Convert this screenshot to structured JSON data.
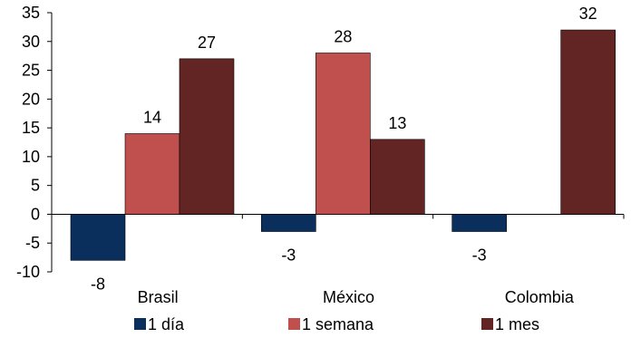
{
  "chart_data": {
    "type": "bar",
    "categories": [
      "Brasil",
      "México",
      "Colombia"
    ],
    "series": [
      {
        "name": "1 día",
        "values": [
          -8,
          -3,
          -3
        ],
        "color": "#0b2f5c",
        "labels": [
          "-8",
          "-3",
          "-3"
        ]
      },
      {
        "name": "1 semana",
        "values": [
          14,
          28,
          null
        ],
        "color": "#c0504d",
        "labels": [
          "14",
          "28",
          ""
        ]
      },
      {
        "name": "1 mes",
        "values": [
          27,
          13,
          32
        ],
        "color": "#632523",
        "labels": [
          "27",
          "13",
          "32"
        ]
      }
    ],
    "ylim": [
      -10,
      35
    ],
    "yticks": [
      "-10",
      "-5",
      "0",
      "5",
      "10",
      "15",
      "20",
      "25",
      "30",
      "35"
    ],
    "grid": false,
    "legend_position": "bottom"
  }
}
